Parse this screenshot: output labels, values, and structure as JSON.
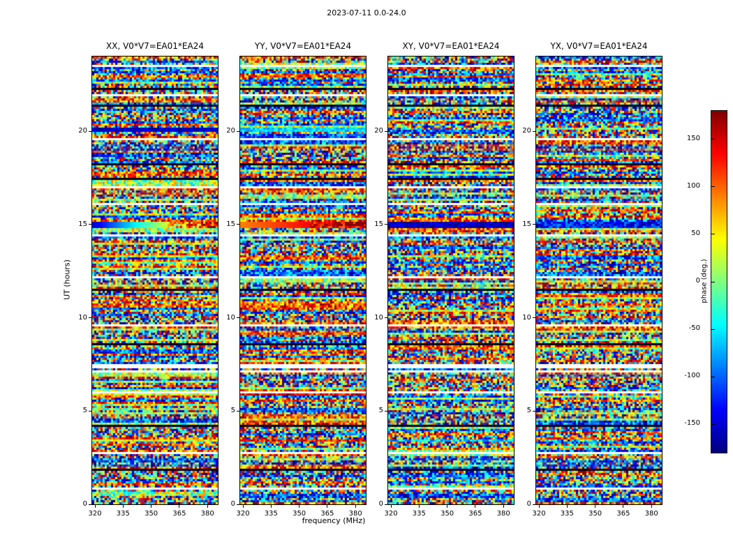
{
  "figure": {
    "title": "2023-07-11 0.0-24.0",
    "xlabel": "frequency (MHz)",
    "ylabel": "UT (hours)"
  },
  "chart_data": {
    "type": "heatmap",
    "title": "2023-07-11 0.0-24.0",
    "xlabel": "frequency (MHz)",
    "ylabel": "UT (hours)",
    "x_range": [
      318.5,
      385.5
    ],
    "y_range": [
      0,
      24
    ],
    "x_ticks": [
      320,
      335,
      350,
      365,
      380
    ],
    "y_ticks": [
      0,
      5,
      10,
      15,
      20
    ],
    "colormap": "jet",
    "legend_position": "none",
    "grid_on": false,
    "colorbar": {
      "label": "phase (deg.)",
      "range": [
        -180,
        180
      ],
      "ticks": [
        150,
        100,
        50,
        0,
        -50,
        -100,
        -150
      ]
    },
    "panels": [
      {
        "id": "XX",
        "title": "XX, V0*V7=EA01*EA24",
        "seed": 101
      },
      {
        "id": "YY",
        "title": "YY, V0*V7=EA01*EA24",
        "seed": 202
      },
      {
        "id": "XY",
        "title": "XY, V0*V7=EA01*EA24",
        "seed": 303
      },
      {
        "id": "YX",
        "title": "YX, V0*V7=EA01*EA24",
        "seed": 404
      }
    ],
    "grid": {
      "rows": 214,
      "cols": 60
    },
    "features": {
      "white_gaps_hours": [
        23.5,
        21.9,
        19.55,
        17.0,
        16.1,
        14.45,
        12.2,
        9.6,
        7.45,
        7.3,
        7.15,
        6.05,
        2.75,
        0.8
      ],
      "dark_rows_hours": [
        22.25,
        21.35,
        18.2,
        17.4,
        11.45,
        8.6,
        4.25,
        1.9
      ],
      "bands": [
        {
          "h0": 14.82,
          "h1": 15.12,
          "styles": {
            "XX": {
              "type": "hgrad",
              "v0": -150,
              "v1": 150,
              "speckleFrom": 0.6,
              "speckleAmp": 160
            },
            "YY": {
              "type": "hgrad",
              "v0": 90,
              "v1": 170,
              "speckleFrom": 0.55,
              "speckleAmp": 120
            },
            "XY": {
              "type": "flat",
              "v": -160,
              "jitter": 30
            },
            "YX": {
              "type": "flat",
              "v": -130,
              "jitter": 50
            }
          }
        },
        {
          "h0": 5.78,
          "h1": 5.95,
          "styles": {
            "XX": {
              "type": "flat",
              "v": 40,
              "jitter": 55
            },
            "YY": {
              "type": "flat",
              "v": 140,
              "jitter": 45
            }
          }
        },
        {
          "h0": 3.35,
          "h1": 3.5,
          "styles": {
            "XX": {
              "type": "flat",
              "v": 35,
              "jitter": 45
            },
            "YY": {
              "type": "flat",
              "v": 130,
              "jitter": 45
            },
            "XY": {
              "type": "flat",
              "v": -60,
              "jitter": 50
            }
          }
        },
        {
          "h0": 20.0,
          "h1": 20.2,
          "styles": {
            "XX": {
              "type": "flat",
              "v": -155,
              "jitter": 25
            },
            "YY": {
              "type": "flat",
              "v": -55,
              "jitter": 30
            }
          }
        }
      ],
      "noise": {
        "warmProb": 0.18,
        "coolProb": 0.18,
        "midProb": 0.1,
        "warm": [
          30,
          180
        ],
        "cool": [
          -180,
          -30
        ],
        "mid": [
          -60,
          90
        ],
        "full": [
          -180,
          180
        ]
      }
    },
    "colors": {
      "background": "#ffffff",
      "axis": "#000000",
      "gap": "#ffffff",
      "dark_row": "#00001e"
    }
  }
}
